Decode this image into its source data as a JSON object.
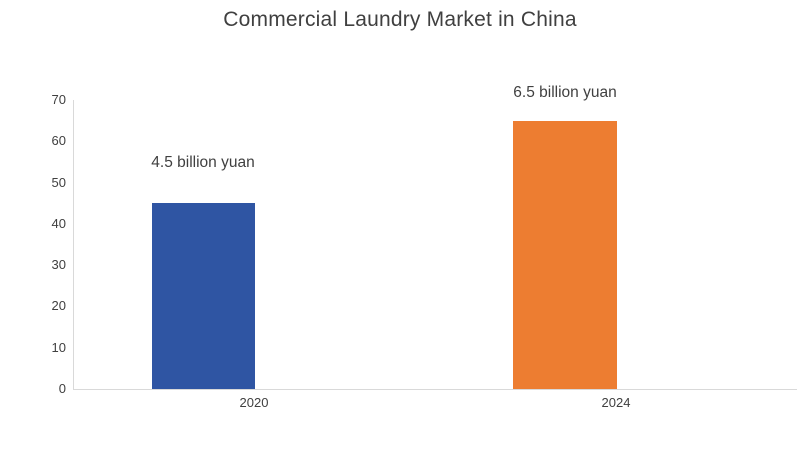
{
  "chart_data": {
    "type": "bar",
    "title": "Commercial Laundry Market in China",
    "categories": [
      "2020",
      "2024"
    ],
    "values": [
      45,
      65
    ],
    "value_labels": [
      "4.5 billion yuan",
      "6.5 billion yuan"
    ],
    "bar_colors": [
      "#2F55A3",
      "#ED7D31"
    ],
    "xlabel": "",
    "ylabel": "",
    "ylim": [
      0,
      70
    ],
    "yticks": [
      0,
      10,
      20,
      30,
      40,
      50,
      60,
      70
    ],
    "grid": false,
    "legend": "none",
    "axis_line_color": "#D9D9D9",
    "text_color": "#404040",
    "background_color": "#FFFFFF"
  }
}
